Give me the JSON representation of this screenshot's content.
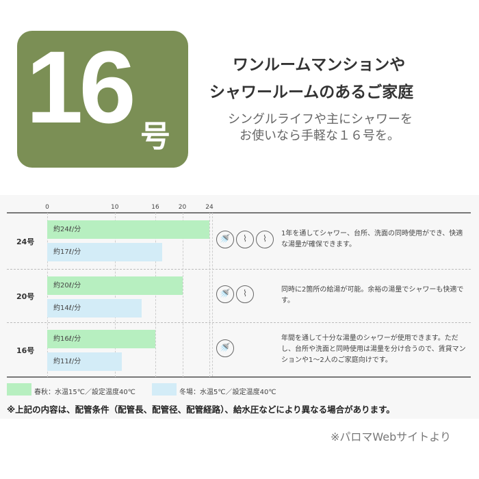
{
  "logo": {
    "number": "16",
    "suffix": "号",
    "color": "#7b8f55"
  },
  "heading": {
    "line1": "ワンルームマンションや",
    "line2": "シャワールームのあるご家庭",
    "sub1": "シングルライフや主にシャワーを",
    "sub2": "お使いなら手軽な１６号を。"
  },
  "chart_data": {
    "type": "bar",
    "orientation": "horizontal",
    "x_ticks": [
      "0",
      "10",
      "16",
      "20",
      "24"
    ],
    "xlim": [
      0,
      24
    ],
    "categories": [
      "24号",
      "20号",
      "16号"
    ],
    "series": [
      {
        "name": "春秋：水温15℃／設定温度40℃",
        "color": "#b7efc0",
        "values": [
          24,
          20,
          16
        ],
        "labels": [
          "約24ℓ/分",
          "約20ℓ/分",
          "約16ℓ/分"
        ]
      },
      {
        "name": "冬場：水温5℃／設定温度40℃",
        "color": "#d3ecf7",
        "values": [
          17,
          14,
          11
        ],
        "labels": [
          "約17ℓ/分",
          "約14ℓ/分",
          "約11ℓ/分"
        ]
      }
    ]
  },
  "rows": [
    {
      "icons": [
        "shower-icon",
        "faucet-icon",
        "faucet-icon"
      ],
      "desc": "1年を通してシャワー、台所、洗面の同時使用ができ、快適な湯量が確保できます。"
    },
    {
      "icons": [
        "shower-icon",
        "faucet-icon"
      ],
      "desc": "同時に2箇所の給湯が可能。余裕の湯量でシャワーも快適です。"
    },
    {
      "icons": [
        "shower-icon"
      ],
      "desc": "年間を通して十分な湯量のシャワーが使用できます。ただし、台所や洗面と同時使用は湯量を分け合うので、賃貸マンションや1〜2人のご家庭向けです。"
    }
  ],
  "note": "※上記の内容は、配管条件（配管長、配管径、配管経路）、給水圧などにより異なる場合があります。",
  "source": "※パロマWebサイトより"
}
